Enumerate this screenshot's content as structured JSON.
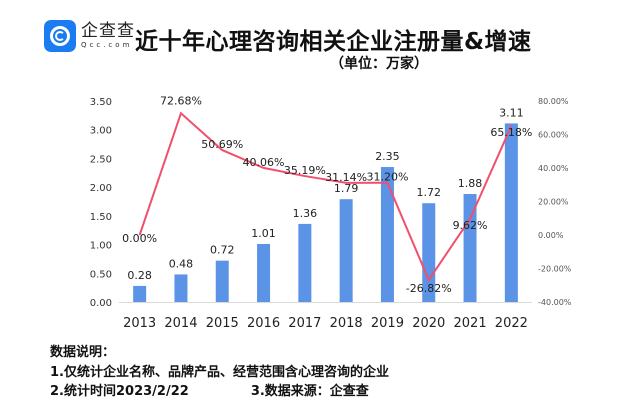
{
  "logo": {
    "name": "企查查",
    "domain": "Qcc.com"
  },
  "title": "近十年心理咨询相关企业注册量&增速",
  "subtitle": "（单位：万家）",
  "chart_data": {
    "type": "bar+line",
    "categories": [
      "2013",
      "2014",
      "2015",
      "2016",
      "2017",
      "2018",
      "2019",
      "2020",
      "2021",
      "2022"
    ],
    "series": [
      {
        "type": "bar",
        "axis": "left",
        "color": "#5b93e6",
        "values": [
          0.28,
          0.48,
          0.72,
          1.01,
          1.36,
          1.79,
          2.35,
          1.72,
          1.88,
          3.11
        ],
        "labels": [
          "0.28",
          "0.48",
          "0.72",
          "1.01",
          "1.36",
          "1.79",
          "2.35",
          "1.72",
          "1.88",
          "3.11"
        ]
      },
      {
        "type": "line",
        "axis": "right",
        "color": "#f0506e",
        "values": [
          0.0,
          72.68,
          50.69,
          40.06,
          35.19,
          31.14,
          31.2,
          -26.82,
          9.62,
          65.18
        ],
        "labels": [
          "0.00%",
          "72.68%",
          "50.69%",
          "40.06%",
          "35.19%",
          "31.14%",
          "31.20%",
          "-26.82%",
          "9.62%",
          "65.18%"
        ]
      }
    ],
    "left_axis": {
      "ylim": [
        0,
        3.5
      ],
      "ticks": [
        "0.00",
        "0.50",
        "1.00",
        "1.50",
        "2.00",
        "2.50",
        "3.00",
        "3.50"
      ]
    },
    "right_axis": {
      "ylim": [
        -40,
        80
      ],
      "ticks": [
        "-40.00%",
        "-20.00%",
        "0.00%",
        "20.00%",
        "40.00%",
        "60.00%",
        "80.00%"
      ]
    },
    "grid": false
  },
  "notes": {
    "heading": "数据说明：",
    "line1": "1.仅统计企业名称、品牌产品、经营范围含心理咨询的企业",
    "line2a": "2.统计时间2023/2/22",
    "line2b": "3.数据来源：企查查"
  }
}
